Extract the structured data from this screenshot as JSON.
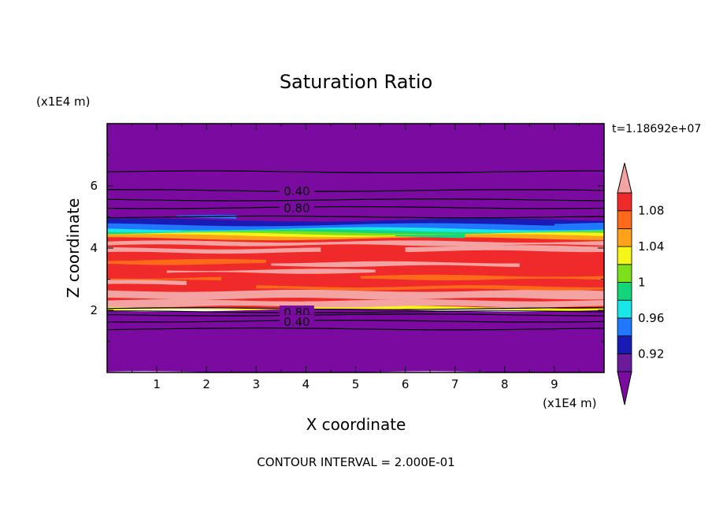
{
  "chart_data": {
    "type": "heatmap",
    "title": "Saturation Ratio",
    "xlabel": "X coordinate",
    "ylabel": "Z coordinate",
    "x_unit": "(x1E4 m)",
    "y_unit": "(x1E4 m)",
    "time_label": "t=1.18692e+07",
    "footer": "CONTOUR INTERVAL = 2.000E-01",
    "xlim": [
      0,
      10
    ],
    "ylim": [
      0,
      8
    ],
    "x_ticks": [
      "1",
      "2",
      "3",
      "4",
      "5",
      "6",
      "7",
      "8",
      "9"
    ],
    "y_ticks": [
      "2",
      "4",
      "6"
    ],
    "grid": false,
    "colorbar": {
      "labels": [
        "0.92",
        "0.96",
        "1",
        "1.04",
        "1.08"
      ],
      "levels": [
        {
          "min": 0.9,
          "max": 0.92,
          "color": "#6a1a9a"
        },
        {
          "min": 0.92,
          "max": 0.94,
          "color": "#1a1ab4"
        },
        {
          "min": 0.94,
          "max": 0.96,
          "color": "#1f78ff"
        },
        {
          "min": 0.96,
          "max": 0.98,
          "color": "#19e6e6"
        },
        {
          "min": 0.98,
          "max": 1.0,
          "color": "#13d67a"
        },
        {
          "min": 1.0,
          "max": 1.02,
          "color": "#7ce01a"
        },
        {
          "min": 1.02,
          "max": 1.04,
          "color": "#f5f51a"
        },
        {
          "min": 1.04,
          "max": 1.06,
          "color": "#ffa21a"
        },
        {
          "min": 1.06,
          "max": 1.08,
          "color": "#ff6a1a"
        },
        {
          "min": 1.08,
          "max": 1.1,
          "color": "#f02a2a"
        }
      ],
      "below_color": "#7a0aa0",
      "above_color": "#f4a3a3"
    },
    "bands": [
      {
        "z_bottom": 4.6,
        "z_top": 8.0,
        "color": "#7a0aa0"
      },
      {
        "z_bottom": 4.5,
        "z_top": 4.9,
        "color": "#1a1ab4"
      },
      {
        "z_bottom": 4.45,
        "z_top": 4.75,
        "color": "#1f78ff"
      },
      {
        "z_bottom": 4.4,
        "z_top": 4.62,
        "color": "#19e6e6"
      },
      {
        "z_bottom": 4.35,
        "z_top": 4.55,
        "color": "#13d67a"
      },
      {
        "z_bottom": 4.3,
        "z_top": 4.5,
        "color": "#7ce01a"
      },
      {
        "z_bottom": 4.25,
        "z_top": 4.45,
        "color": "#f5f51a"
      },
      {
        "z_bottom": 4.15,
        "z_top": 4.4,
        "color": "#ffa21a"
      },
      {
        "z_bottom": 2.05,
        "z_top": 4.3,
        "color": "#f02a2a"
      },
      {
        "z_bottom": 2.0,
        "z_top": 2.1,
        "color": "#f5f51a"
      },
      {
        "z_bottom": 0.0,
        "z_top": 2.0,
        "color": "#7a0aa0"
      }
    ],
    "streaks": [
      {
        "x0": 0.0,
        "x1": 10.0,
        "z": 4.15,
        "h": 0.12,
        "color": "#f4a3a3"
      },
      {
        "x0": 0.0,
        "x1": 4.3,
        "z": 3.92,
        "h": 0.14,
        "color": "#f4a3a3"
      },
      {
        "x0": 6.0,
        "x1": 10.0,
        "z": 3.98,
        "h": 0.16,
        "color": "#f4a3a3"
      },
      {
        "x0": 0.0,
        "x1": 3.2,
        "z": 3.55,
        "h": 0.13,
        "color": "#ff6a1a"
      },
      {
        "x0": 3.3,
        "x1": 8.3,
        "z": 3.48,
        "h": 0.12,
        "color": "#f4a3a3"
      },
      {
        "x0": 1.2,
        "x1": 5.4,
        "z": 3.25,
        "h": 0.1,
        "color": "#f4a3a3"
      },
      {
        "x0": 0.0,
        "x1": 2.3,
        "z": 3.0,
        "h": 0.1,
        "color": "#ff6a1a"
      },
      {
        "x0": 5.1,
        "x1": 10.0,
        "z": 3.05,
        "h": 0.12,
        "color": "#ff6a1a"
      },
      {
        "x0": 0.0,
        "x1": 1.6,
        "z": 2.88,
        "h": 0.12,
        "color": "#f4a3a3"
      },
      {
        "x0": 0.0,
        "x1": 10.0,
        "z": 2.5,
        "h": 0.25,
        "color": "#f4a3a3"
      },
      {
        "x0": 3.0,
        "x1": 10.0,
        "z": 2.72,
        "h": 0.1,
        "color": "#ff6a1a"
      },
      {
        "x0": 0.0,
        "x1": 10.0,
        "z": 2.22,
        "h": 0.2,
        "color": "#f4a3a3"
      },
      {
        "x0": 1.5,
        "x1": 2.1,
        "z": 4.56,
        "h": 0.06,
        "color": "#13d67a"
      },
      {
        "x0": 5.8,
        "x1": 7.2,
        "z": 4.4,
        "h": 0.1,
        "color": "#13d67a"
      },
      {
        "x0": 1.4,
        "x1": 2.6,
        "z": 5.0,
        "h": 0.06,
        "color": "#1f78ff"
      },
      {
        "x0": 9.0,
        "x1": 10.0,
        "z": 4.75,
        "h": 0.08,
        "color": "#1f78ff"
      }
    ],
    "contours": [
      {
        "z": 6.45,
        "label": ""
      },
      {
        "z": 5.85,
        "label": "0.40",
        "label_x": 3.5
      },
      {
        "z": 5.55,
        "label": ""
      },
      {
        "z": 5.3,
        "label": "0.80",
        "label_x": 3.5
      },
      {
        "z": 5.0,
        "label": ""
      },
      {
        "z": 2.05,
        "label": ""
      },
      {
        "z": 1.95,
        "label": "0.80",
        "label_x": 3.5
      },
      {
        "z": 1.85,
        "label": ""
      },
      {
        "z": 1.65,
        "label": "0.40",
        "label_x": 3.5
      },
      {
        "z": 1.4,
        "label": ""
      }
    ]
  }
}
